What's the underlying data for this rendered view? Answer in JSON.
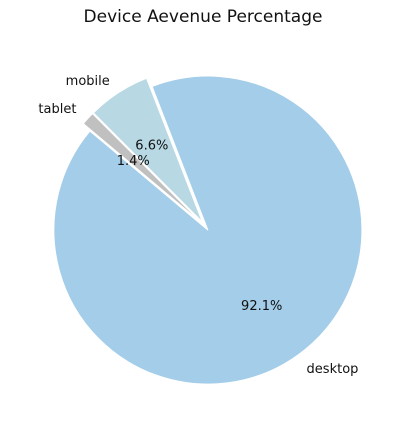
{
  "chart_data": {
    "type": "pie",
    "title": "Device Aevenue Percentage",
    "slices": [
      {
        "label": "desktop",
        "value": 92.1,
        "pct_label": "92.1%",
        "color": "#a3cde8"
      },
      {
        "label": "mobile",
        "value": 6.6,
        "pct_label": "6.6%",
        "color": "#b8d8e4"
      },
      {
        "label": "tablet",
        "value": 1.4,
        "pct_label": "1.4%",
        "color": "#c0c0c0"
      }
    ],
    "start_angle_deg": 140,
    "direction": "counterclockwise",
    "explode": "slight, all slices",
    "slice_edge_color": "#ffffff"
  }
}
